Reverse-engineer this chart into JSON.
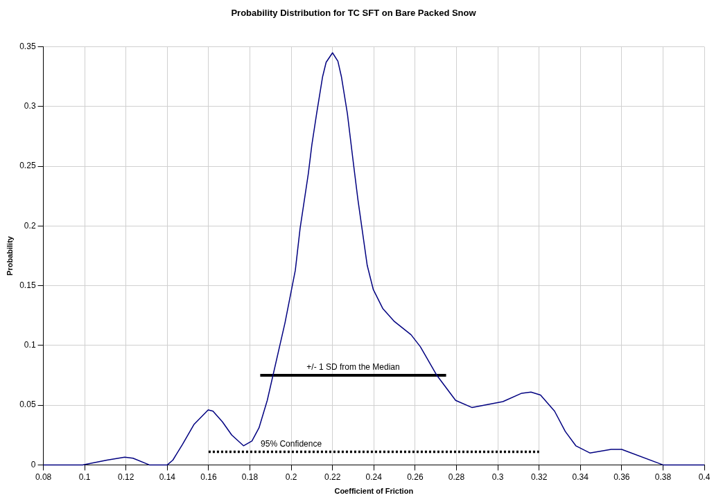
{
  "chart_data": {
    "type": "line",
    "title": "Probability Distribution for TC SFT on Bare Packed Snow",
    "xlabel": "Coefficient of Friction",
    "ylabel": "Probability",
    "xlim": [
      0.08,
      0.4
    ],
    "xticks": [
      0.08,
      0.1,
      0.12,
      0.14,
      0.16,
      0.18,
      0.2,
      0.22,
      0.24,
      0.26,
      0.28,
      0.3,
      0.32,
      0.34,
      0.36,
      0.38,
      0.4
    ],
    "ylim": [
      0,
      0.35
    ],
    "yticks": [
      0,
      0.05,
      0.1,
      0.15,
      0.2,
      0.25,
      0.3,
      0.35
    ],
    "grid": true,
    "legend": false,
    "marker": "none",
    "series": [
      {
        "color": "#000080",
        "line_style": "solid",
        "x": [
          0.08,
          0.099,
          0.1108,
          0.1194,
          0.1234,
          0.1313,
          0.14,
          0.1427,
          0.1473,
          0.153,
          0.1598,
          0.1621,
          0.1667,
          0.1712,
          0.1769,
          0.181,
          0.1844,
          0.1884,
          0.197,
          0.202,
          0.2043,
          0.2083,
          0.21,
          0.2123,
          0.2152,
          0.2169,
          0.22,
          0.2226,
          0.2243,
          0.2272,
          0.23,
          0.2323,
          0.2368,
          0.2397,
          0.2443,
          0.25,
          0.258,
          0.2625,
          0.2705,
          0.2796,
          0.2876,
          0.3025,
          0.3116,
          0.3161,
          0.3207,
          0.3275,
          0.3327,
          0.3378,
          0.3446,
          0.3549,
          0.36,
          0.38,
          0.4
        ],
        "values": [
          0,
          0,
          0.004,
          0.0064,
          0.0056,
          0,
          0,
          0.004,
          0.017,
          0.034,
          0.046,
          0.045,
          0.036,
          0.025,
          0.016,
          0.02,
          0.031,
          0.054,
          0.119,
          0.163,
          0.198,
          0.244,
          0.268,
          0.294,
          0.325,
          0.337,
          0.345,
          0.338,
          0.325,
          0.294,
          0.254,
          0.222,
          0.167,
          0.147,
          0.131,
          0.12,
          0.109,
          0.099,
          0.075,
          0.054,
          0.048,
          0.053,
          0.06,
          0.061,
          0.0585,
          0.045,
          0.028,
          0.016,
          0.01,
          0.013,
          0.013,
          0,
          0
        ]
      },
      {
        "color": "#000000",
        "line_style": "solid",
        "x": [
          0.185,
          0.275
        ],
        "values": [
          0.075,
          0.075
        ]
      },
      {
        "color": "#000000",
        "line_style": "dotted",
        "x": [
          0.16,
          0.32
        ],
        "values": [
          0.011,
          0.011
        ]
      }
    ],
    "annotations": [
      {
        "text": "+/- 1 SD from the Median",
        "x": 0.23,
        "y": 0.075
      },
      {
        "text": "95% Confidence",
        "x": 0.2,
        "y": 0.011
      }
    ]
  }
}
